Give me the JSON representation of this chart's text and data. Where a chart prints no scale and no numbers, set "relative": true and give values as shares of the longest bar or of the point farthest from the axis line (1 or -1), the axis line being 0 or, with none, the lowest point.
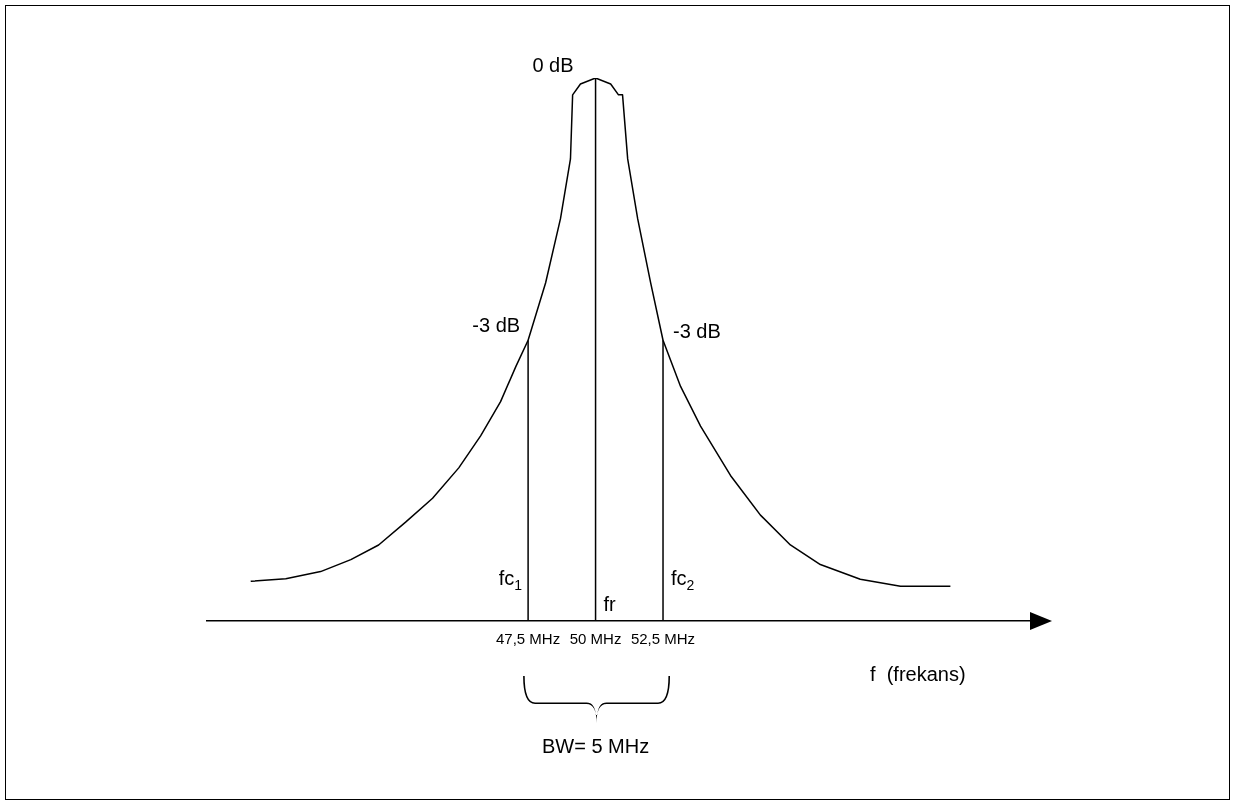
{
  "chart_data": {
    "type": "line",
    "relative": true,
    "xlabel": "f  (frekans)",
    "x": [
      37.22,
      38.52,
      39.81,
      40.93,
      41.96,
      42.96,
      43.96,
      44.93,
      45.74,
      46.48,
      47.04,
      47.5,
      48.15,
      48.7,
      49.07,
      49.15,
      49.44,
      50,
      50.56,
      50.85,
      51.0,
      51.19,
      51.56,
      52.04,
      52.5,
      53.15,
      53.89,
      55,
      56.11,
      57.22,
      58.33,
      59.81,
      61.3,
      63.15
    ],
    "series": [
      {
        "color": "#000000",
        "values": [
          0.073,
          0.078,
          0.091,
          0.113,
          0.14,
          0.182,
          0.226,
          0.282,
          0.341,
          0.404,
          0.468,
          0.517,
          0.623,
          0.741,
          0.851,
          0.969,
          0.989,
          1,
          0.989,
          0.969,
          0.969,
          0.851,
          0.741,
          0.623,
          0.517,
          0.432,
          0.359,
          0.268,
          0.195,
          0.14,
          0.104,
          0.077,
          0.064,
          0.064
        ]
      }
    ],
    "xlim": [
      35.6,
      66.1
    ],
    "xticks": [
      {
        "value": 47.5,
        "label": "47,5 MHz"
      },
      {
        "value": 50,
        "label": "50 MHz"
      },
      {
        "value": 52.5,
        "label": "52,5 MHz"
      }
    ],
    "tick_labels": "x",
    "grid": false,
    "legend": false,
    "marker": "none",
    "line_style": "solid",
    "ref_lines": [
      {
        "axis": "x",
        "value": 47.5,
        "label": "fc$_{1}$"
      },
      {
        "axis": "x",
        "value": 50,
        "label": "fr"
      },
      {
        "axis": "x",
        "value": 52.5,
        "label": "fc$_{2}$"
      }
    ],
    "annotations": [
      {
        "text": "0 dB",
        "x": 50,
        "y": 1
      },
      {
        "text": "-3 dB",
        "x": 47.5,
        "y": 0.517
      },
      {
        "text": "-3 dB",
        "x": 52.5,
        "y": 0.517
      },
      "BW= 5 MHz"
    ]
  }
}
